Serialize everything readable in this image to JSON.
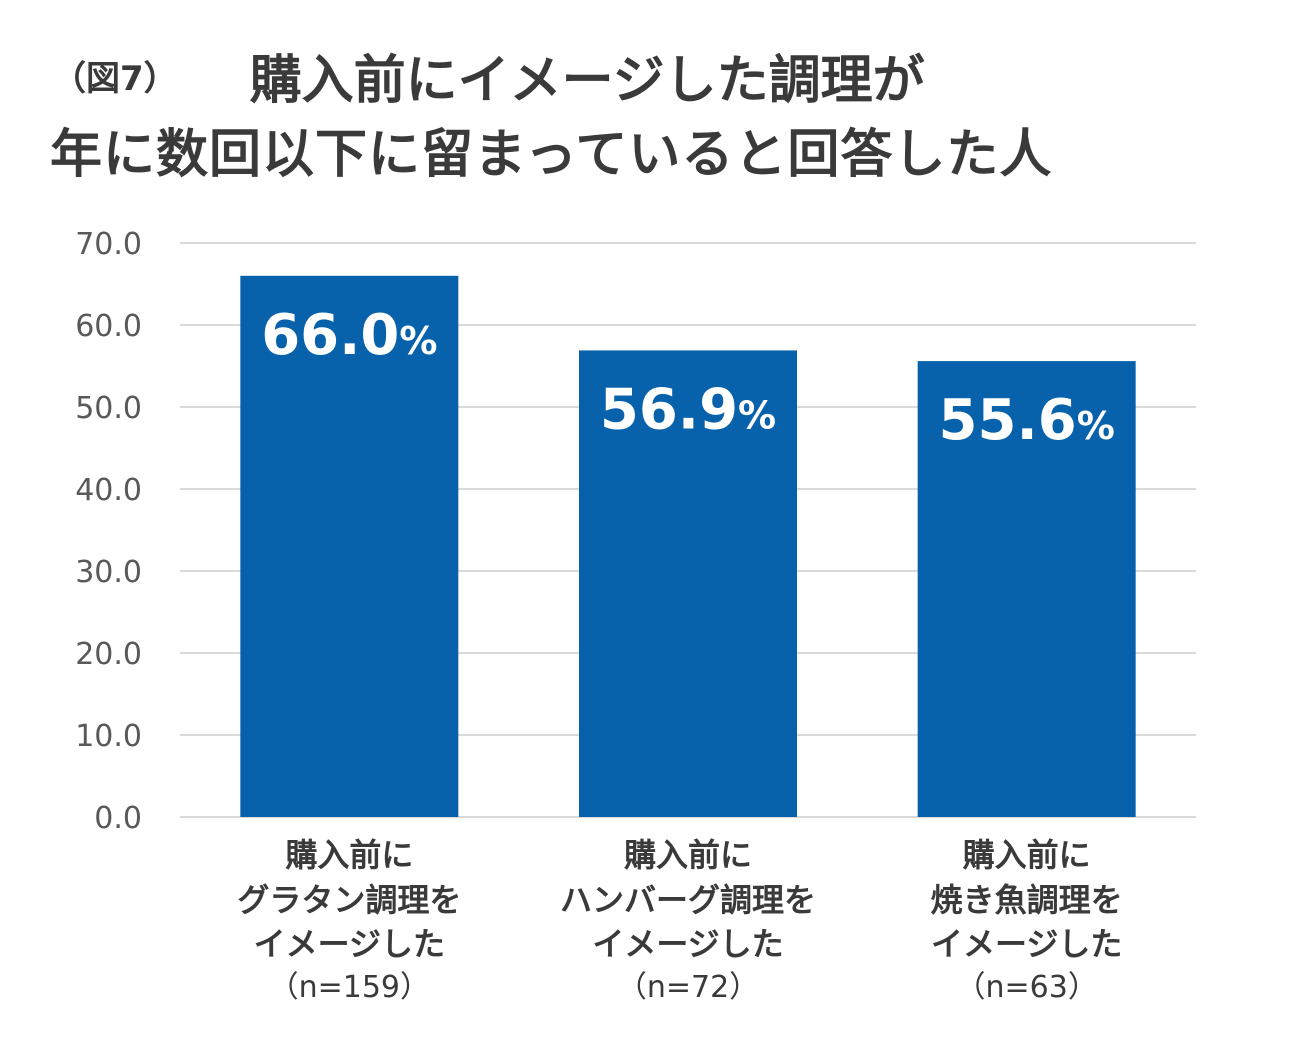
{
  "title": {
    "figure_label": "（図7）",
    "line1": "購入前にイメージした調理が",
    "line2": "年に数回以下に留まっていると回答した人"
  },
  "colors": {
    "bar": "#0862ab",
    "grid": "#d9d9d9",
    "text": "#3a3a3a"
  },
  "chart_data": {
    "type": "bar",
    "title": "購入前にイメージした調理が年に数回以下に留まっていると回答した人",
    "categories": [
      [
        "購入前に",
        "グラタン調理を",
        "イメージした",
        "（n=159）"
      ],
      [
        "購入前に",
        "ハンバーグ調理を",
        "イメージした",
        "（n=72）"
      ],
      [
        "購入前に",
        "焼き魚調理を",
        "イメージした",
        "（n=63）"
      ]
    ],
    "values": [
      66.0,
      56.9,
      55.6
    ],
    "value_labels": [
      "66.0",
      "56.9",
      "55.6"
    ],
    "value_unit": "%",
    "ylim": [
      0,
      70
    ],
    "yticks": [
      "0.0",
      "10.0",
      "20.0",
      "30.0",
      "40.0",
      "50.0",
      "60.0",
      "70.0"
    ],
    "grid": true,
    "legend": "none"
  }
}
